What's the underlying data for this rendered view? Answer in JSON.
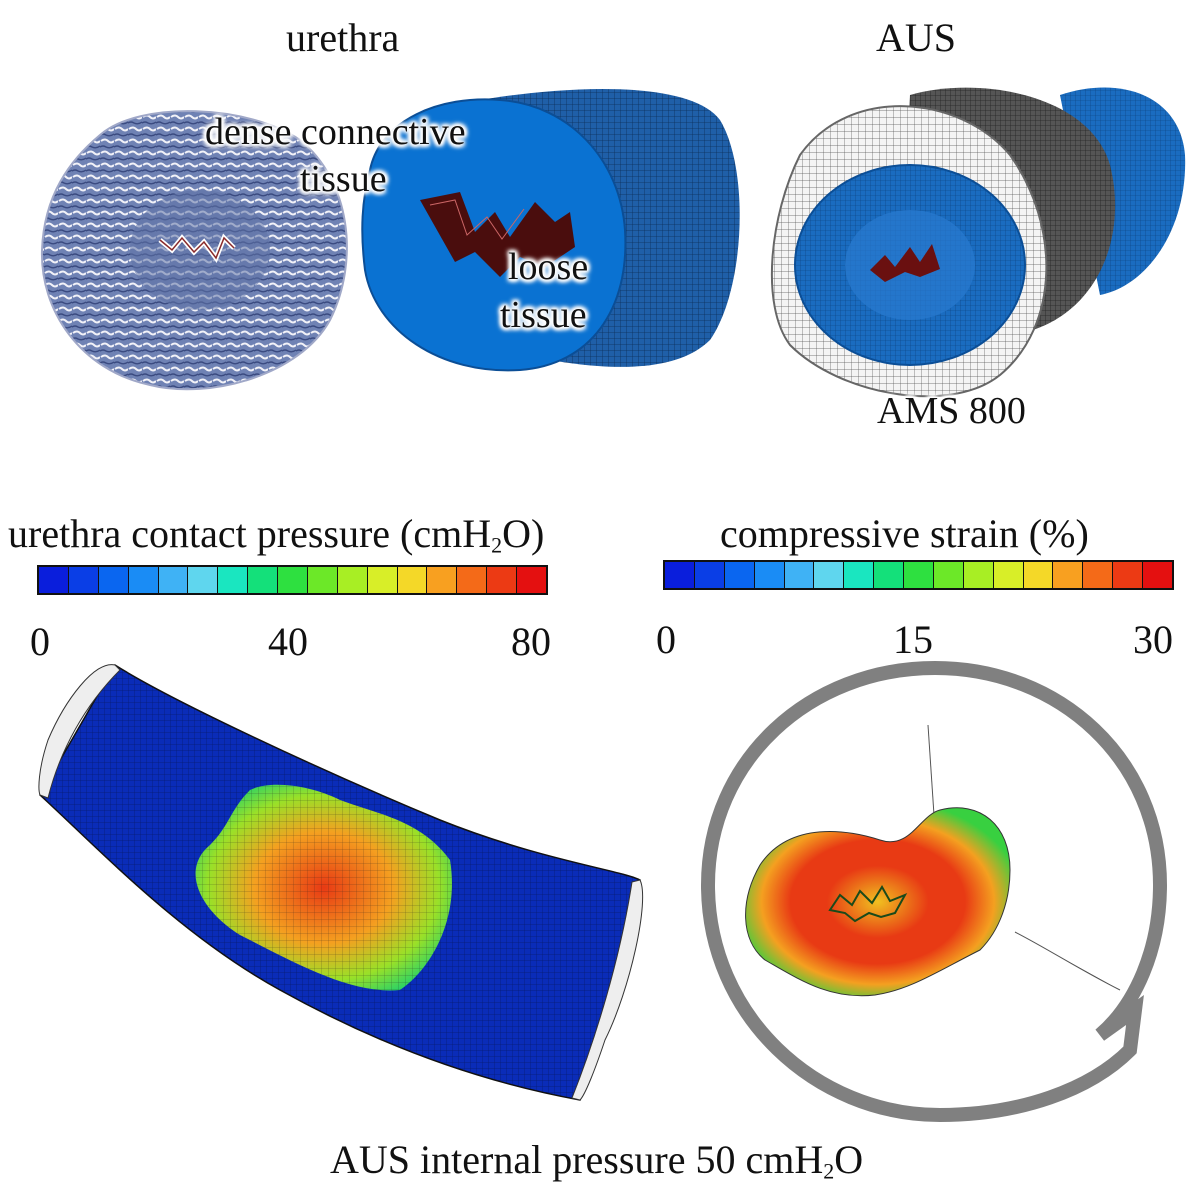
{
  "panels": {
    "urethra_title": "urethra",
    "aus_title": "AUS",
    "dense_label_line1": "dense connective",
    "dense_label_line2": "tissue",
    "loose_label_line1": "loose",
    "loose_label_line2": "tissue",
    "device_label": "AMS 800"
  },
  "legend_pressure": {
    "title_pre": "urethra contact pressure (cmH",
    "title_sub": "2",
    "title_post": "O)",
    "min": "0",
    "mid": "40",
    "max": "80",
    "colors": [
      "#0a1edc",
      "#0a3ee6",
      "#0a66f0",
      "#1a8cf5",
      "#3fb2f5",
      "#5fd6ee",
      "#1ae6c0",
      "#14e07a",
      "#2ee040",
      "#6ce828",
      "#a8ee24",
      "#d8ee28",
      "#f4d828",
      "#f8a020",
      "#f46a18",
      "#ec3a14",
      "#e41010"
    ]
  },
  "legend_strain": {
    "title": "compressive strain (%)",
    "min": "0",
    "mid": "15",
    "max": "30",
    "colors": [
      "#0a1edc",
      "#0a3ee6",
      "#0a66f0",
      "#1a8cf5",
      "#3fb2f5",
      "#5fd6ee",
      "#1ae6c0",
      "#14e07a",
      "#2ee040",
      "#6ce828",
      "#a8ee24",
      "#d8ee28",
      "#f4d828",
      "#f8a020",
      "#f46a18",
      "#ec3a14",
      "#e41010"
    ]
  },
  "caption": {
    "pre": "AUS internal pressure 50 cmH",
    "sub": "2",
    "post": "O"
  }
}
